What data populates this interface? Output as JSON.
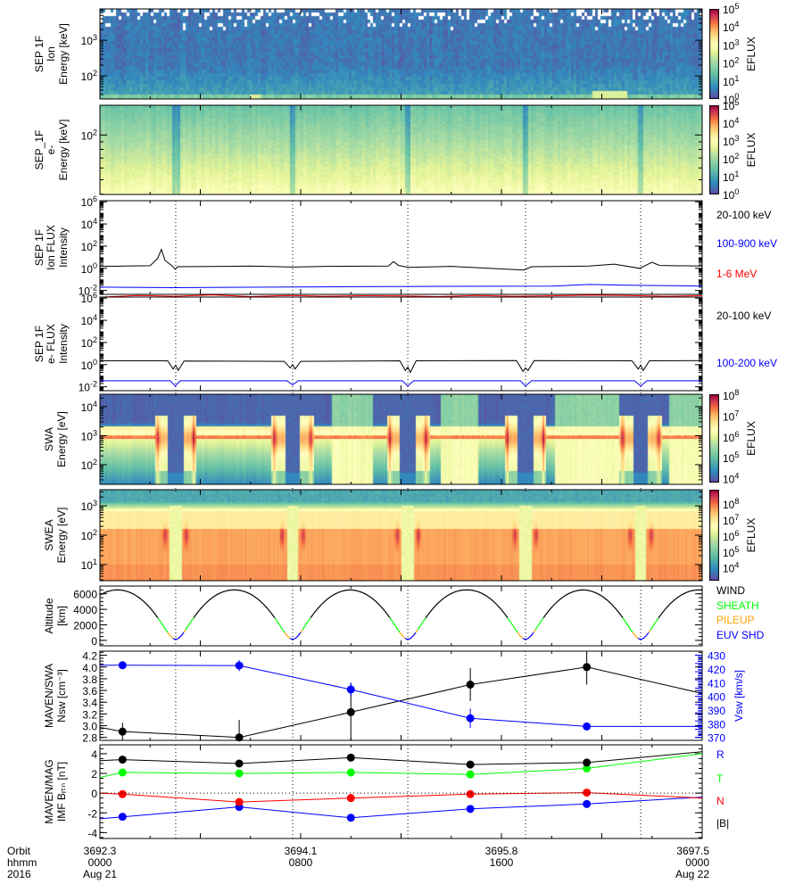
{
  "x_axis": {
    "range_hours": [
      0,
      24
    ],
    "row_titles": [
      "Orbit",
      "hhmm",
      "2016"
    ],
    "ticks": [
      {
        "hours": 0,
        "orbit": "3692.3",
        "hhmm": "0000",
        "date": "Aug 21"
      },
      {
        "hours": 8,
        "orbit": "3694.1",
        "hhmm": "0800",
        "date": ""
      },
      {
        "hours": 16,
        "orbit": "3695.8",
        "hhmm": "1600",
        "date": ""
      },
      {
        "hours": 24,
        "orbit": "3697.5",
        "hhmm": "0000",
        "date": "Aug 22"
      }
    ],
    "periapsis_marker_hours": [
      3.02,
      7.68,
      12.27,
      16.96,
      21.55
    ]
  },
  "chart_data": [
    {
      "id": "sep_ion_spec",
      "type": "heatmap",
      "ylabel": [
        "SEP 1F",
        "Ion",
        "Energy [keV]"
      ],
      "yscale": "log",
      "ylim_log10": [
        1.35,
        3.88
      ],
      "yticks": [
        "10^2",
        "10^3"
      ],
      "ytick_log10": [
        2,
        3
      ],
      "colorbar": {
        "label": "EFLUX",
        "range_log10": [
          0,
          5
        ],
        "ticks": [
          "10^0",
          "10^1",
          "10^2",
          "10^3",
          "10^4",
          "10^5"
        ],
        "tick_log10": [
          0,
          1,
          2,
          3,
          4,
          5
        ]
      }
    },
    {
      "id": "sep_e_spec",
      "type": "heatmap",
      "ylabel": [
        "SEP_1F",
        "e-",
        "Energy [keV]"
      ],
      "yscale": "log",
      "ylim_log10": [
        1.6,
        2.2
      ],
      "yticks": [
        "10^2"
      ],
      "ytick_log10": [
        2
      ],
      "colorbar": {
        "label": "EFLUX",
        "range_log10": [
          0,
          5
        ],
        "ticks": [
          "10^0",
          "10^1",
          "10^2",
          "10^3",
          "10^4",
          "10^5"
        ],
        "tick_log10": [
          0,
          1,
          2,
          3,
          4,
          5
        ]
      }
    },
    {
      "id": "sep_ion_flux",
      "type": "line",
      "ylabel": [
        "SEP 1F",
        "Ion FLUX",
        "Intensity"
      ],
      "yscale": "log",
      "ylim_log10": [
        -2.35,
        6.1
      ],
      "yticks": [
        "10^6",
        "10^4",
        "10^2",
        "10^0",
        "10^-2"
      ],
      "ytick_log10": [
        6,
        4,
        2,
        0,
        -2
      ],
      "series": [
        {
          "name": "20-100 keV",
          "color": "#000000",
          "points": [
            [
              0,
              1.5
            ],
            [
              1,
              1.6
            ],
            [
              2,
              1.7
            ],
            [
              2.3,
              8
            ],
            [
              2.45,
              50
            ],
            [
              2.6,
              5
            ],
            [
              2.9,
              1.5
            ],
            [
              3.0,
              0.8
            ],
            [
              3.1,
              1.4
            ],
            [
              5,
              1.5
            ],
            [
              6,
              1.6
            ],
            [
              7.7,
              1.3
            ],
            [
              9,
              1.5
            ],
            [
              11.5,
              1.6
            ],
            [
              11.7,
              4
            ],
            [
              11.9,
              1.8
            ],
            [
              12.3,
              1.2
            ],
            [
              14,
              1.5
            ],
            [
              16.9,
              0.7
            ],
            [
              17.2,
              1.4
            ],
            [
              19.5,
              1.6
            ],
            [
              20.5,
              2.4
            ],
            [
              21.5,
              1.0
            ],
            [
              22,
              3.5
            ],
            [
              22.3,
              1.8
            ],
            [
              24,
              1.6
            ]
          ]
        },
        {
          "name": "100-900 keV",
          "color": "#0000ff",
          "points": [
            [
              0,
              0.02
            ],
            [
              3,
              0.018
            ],
            [
              10,
              0.022
            ],
            [
              18,
              0.025
            ],
            [
              19.5,
              0.035
            ],
            [
              21,
              0.03
            ],
            [
              24,
              0.025
            ]
          ]
        },
        {
          "name": "1-6 MeV",
          "color": "#ff0000",
          "points": [
            [
              0,
              0.0025
            ],
            [
              1.5,
              0.0035
            ],
            [
              3,
              0.003
            ],
            [
              4.5,
              0.004
            ],
            [
              6,
              0.0028
            ],
            [
              7.5,
              0.0036
            ],
            [
              9,
              0.003
            ],
            [
              10.5,
              0.0034
            ],
            [
              12,
              0.0032
            ],
            [
              13.5,
              0.0028
            ],
            [
              15,
              0.0036
            ],
            [
              16.5,
              0.003
            ],
            [
              18,
              0.0033
            ],
            [
              19.5,
              0.0038
            ],
            [
              21,
              0.0035
            ],
            [
              22.5,
              0.003
            ],
            [
              24,
              0.0034
            ]
          ]
        }
      ]
    },
    {
      "id": "sep_e_flux",
      "type": "line",
      "ylabel": [
        "SEP 1F",
        "e- FLUX",
        "Intensity"
      ],
      "yscale": "log",
      "ylim_log10": [
        -2.35,
        6.1
      ],
      "yticks": [
        "10^6",
        "10^4",
        "10^2",
        "10^0",
        "10^-2"
      ],
      "ytick_log10": [
        6,
        4,
        2,
        0,
        -2
      ],
      "series": [
        {
          "name": "20-100 keV",
          "color": "#000000",
          "points": [
            [
              0,
              2.2
            ],
            [
              2.7,
              2.2
            ],
            [
              2.92,
              0.4
            ],
            [
              3.02,
              0.9
            ],
            [
              3.12,
              0.3
            ],
            [
              3.35,
              2.1
            ],
            [
              7.35,
              2.0
            ],
            [
              7.58,
              0.5
            ],
            [
              7.68,
              1.0
            ],
            [
              7.78,
              0.4
            ],
            [
              8.0,
              2.0
            ],
            [
              11.95,
              2.2
            ],
            [
              12.17,
              0.3
            ],
            [
              12.27,
              0.6
            ],
            [
              12.37,
              0.2
            ],
            [
              12.6,
              2.2
            ],
            [
              16.6,
              2.3
            ],
            [
              16.86,
              0.25
            ],
            [
              16.96,
              0.5
            ],
            [
              17.06,
              0.3
            ],
            [
              17.3,
              2.3
            ],
            [
              21.2,
              2.2
            ],
            [
              21.45,
              0.4
            ],
            [
              21.55,
              0.9
            ],
            [
              21.65,
              0.3
            ],
            [
              21.9,
              2.2
            ],
            [
              24,
              2.3
            ]
          ]
        },
        {
          "name": "100-200 keV",
          "color": "#0000ff",
          "points": [
            [
              0,
              0.035
            ],
            [
              2.8,
              0.035
            ],
            [
              3.0,
              0.012
            ],
            [
              3.2,
              0.035
            ],
            [
              7.45,
              0.035
            ],
            [
              7.68,
              0.015
            ],
            [
              7.9,
              0.035
            ],
            [
              12.05,
              0.035
            ],
            [
              12.27,
              0.012
            ],
            [
              12.5,
              0.035
            ],
            [
              16.75,
              0.035
            ],
            [
              16.96,
              0.012
            ],
            [
              17.2,
              0.035
            ],
            [
              21.3,
              0.035
            ],
            [
              21.55,
              0.012
            ],
            [
              21.8,
              0.035
            ],
            [
              24,
              0.035
            ]
          ]
        }
      ]
    },
    {
      "id": "swa_spec",
      "type": "heatmap",
      "ylabel": [
        "SWA",
        "Energy [eV]"
      ],
      "yscale": "log",
      "ylim_log10": [
        1.32,
        4.43
      ],
      "yticks": [
        "10^2",
        "10^3",
        "10^4"
      ],
      "ytick_log10": [
        2,
        3,
        4
      ],
      "colorbar": {
        "label": "EFLUX",
        "range_log10": [
          3.8,
          8.05
        ],
        "ticks": [
          "10^4",
          "10^5",
          "10^6",
          "10^7",
          "10^8"
        ],
        "tick_log10": [
          4,
          5,
          6,
          7,
          8
        ]
      }
    },
    {
      "id": "swea_spec",
      "type": "heatmap",
      "ylabel": [
        "SWEA",
        "Energy [eV]"
      ],
      "yscale": "log",
      "ylim_log10": [
        0.45,
        3.55
      ],
      "yticks": [
        "10^1",
        "10^2",
        "10^3"
      ],
      "ytick_log10": [
        1,
        2,
        3
      ],
      "colorbar": {
        "label": "EFLUX",
        "range_log10": [
          3.2,
          8.9
        ],
        "ticks": [
          "10^4",
          "10^5",
          "10^6",
          "10^7",
          "10^8"
        ],
        "tick_log10": [
          4,
          5,
          6,
          7,
          8
        ]
      }
    },
    {
      "id": "altitude",
      "type": "line",
      "ylabel": [
        "Altitude",
        "[km]"
      ],
      "ylim": [
        -700,
        7000
      ],
      "yticks": [
        "0",
        "2000",
        "4000",
        "6000"
      ],
      "ytick_values": [
        0,
        2000,
        4000,
        6000
      ],
      "orbit": {
        "apoapsis_km": 6500,
        "periapsis_km": 150,
        "periapsis_hours": [
          3.02,
          7.68,
          12.27,
          16.96,
          21.55,
          26.2,
          -1.62
        ]
      },
      "legend": [
        {
          "name": "WIND",
          "color": "#000000"
        },
        {
          "name": "SHEATH",
          "color": "#00ff00"
        },
        {
          "name": "PILEUP",
          "color": "#ffa500"
        },
        {
          "name": "EUV SHD",
          "color": "#0000ff"
        }
      ]
    },
    {
      "id": "swa_moments",
      "type": "scatter",
      "ylabel": [
        "MAVEN/SWA",
        "Nsw [cm^-3]"
      ],
      "ylim": [
        2.75,
        4.27
      ],
      "yticks": [
        "4.2",
        "4.0",
        "3.8",
        "3.6",
        "3.4",
        "3.2",
        "3.0",
        "2.8"
      ],
      "ytick_values": [
        4.2,
        4.0,
        3.8,
        3.6,
        3.4,
        3.2,
        3.0,
        2.8
      ],
      "y2label": "Vsw [km/s]",
      "y2ticks": [
        "430",
        "420",
        "410",
        "400",
        "390",
        "380",
        "370"
      ],
      "y2tick_values": [
        430,
        420,
        410,
        400,
        390,
        380,
        370
      ],
      "series": [
        {
          "name": "Nsw",
          "color": "#000000",
          "axis": "left",
          "x": [
            0.9,
            5.55,
            10.0,
            14.76,
            19.4
          ],
          "y": [
            2.9,
            2.8,
            3.23,
            3.7,
            4.0
          ],
          "err": [
            0.15,
            0.3,
            0.5,
            0.28,
            0.3
          ],
          "line_start": 2.97,
          "line_end": 3.55
        },
        {
          "name": "Vsw",
          "color": "#0000ff",
          "axis": "right",
          "x": [
            0.9,
            5.55,
            10.0,
            14.76,
            19.4
          ],
          "y": [
            422.7,
            422.5,
            405,
            384,
            378
          ],
          "err": [
            2,
            4,
            5,
            7,
            2
          ],
          "line_start": 422.7,
          "line_end": 378
        }
      ]
    },
    {
      "id": "mag_imf",
      "type": "scatter",
      "ylabel": [
        "MAVEN/MAG",
        "IMF B_RTN [nT]"
      ],
      "ylim": [
        -4.6,
        4.9
      ],
      "yticks": [
        "4",
        "2",
        "0",
        "-2",
        "-4"
      ],
      "ytick_values": [
        4,
        2,
        0,
        -2,
        -4
      ],
      "series": [
        {
          "name": "R",
          "color": "#0000ff",
          "x": [
            0.9,
            5.55,
            10.0,
            14.76,
            19.4
          ],
          "y": [
            -2.4,
            -1.4,
            -2.5,
            -1.6,
            -1.1
          ],
          "line_start": -2.6,
          "line_end": -0.4
        },
        {
          "name": "T",
          "color": "#00ff00",
          "x": [
            0.9,
            5.55,
            10.0,
            14.76,
            19.4
          ],
          "y": [
            2.1,
            2.0,
            2.1,
            1.9,
            2.5
          ],
          "line_start": 1.6,
          "line_end": 4.0
        },
        {
          "name": "N",
          "color": "#ff0000",
          "x": [
            0.9,
            5.55,
            10.0,
            14.76,
            19.4
          ],
          "y": [
            -0.1,
            -0.9,
            -0.5,
            -0.1,
            0.05
          ],
          "line_start": 0.0,
          "line_end": -0.5
        },
        {
          "name": "|B|",
          "color": "#000000",
          "x": [
            0.9,
            5.55,
            10.0,
            14.76,
            19.4
          ],
          "y": [
            3.4,
            3.0,
            3.6,
            2.9,
            3.1
          ],
          "line_start": 3.3,
          "line_end": 4.2
        }
      ]
    }
  ]
}
